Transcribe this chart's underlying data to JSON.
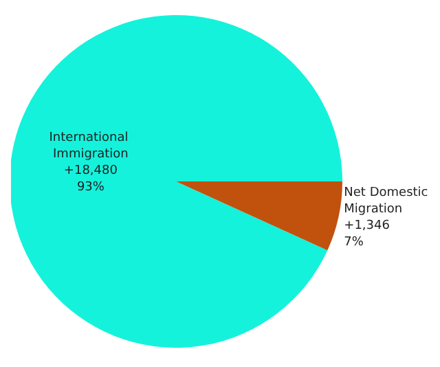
{
  "chart_data": {
    "type": "pie",
    "categories": [
      "International Immigration",
      "Net Domestic Migration"
    ],
    "values": [
      18480,
      1346
    ],
    "value_labels": [
      "+18,480\n93%",
      "+1,346\n7%"
    ],
    "colors": [
      "#14f2dc",
      "#c0520e"
    ]
  }
}
